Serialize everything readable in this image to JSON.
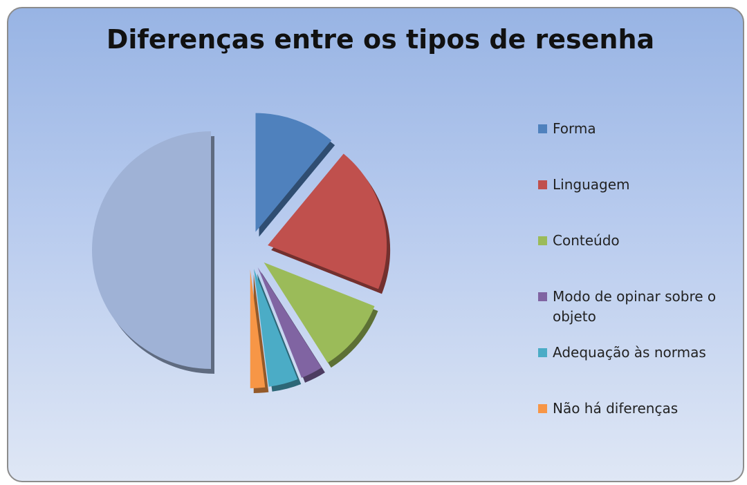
{
  "chart_data": {
    "type": "pie",
    "title": "Diferenças entre os tipos de resenha",
    "categories": [
      "Forma",
      "Linguagem",
      "Conteúdo",
      "Modo de opinar sobre o objeto",
      "Adequação às normas",
      "Não há diferenças",
      null
    ],
    "values": [
      11,
      20,
      10,
      3,
      4,
      2,
      50
    ],
    "colors": [
      "#4f81bd",
      "#c0504d",
      "#9bbb59",
      "#8064a2",
      "#4bacc6",
      "#f79646",
      "#9fb2d6"
    ],
    "legend": "right"
  }
}
